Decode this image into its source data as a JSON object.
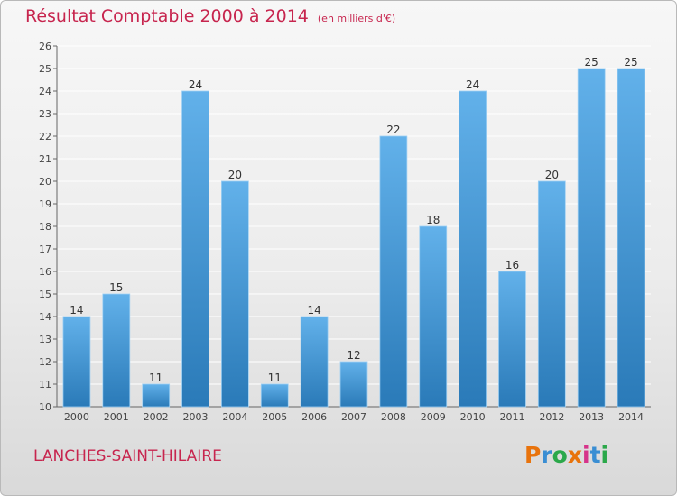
{
  "header": {
    "title": "Résultat Comptable 2000 à 2014",
    "unit": "(en milliers d'€)"
  },
  "footer": {
    "commune": "LANCHES-SAINT-HILAIRE",
    "logo_text": "Proxiti",
    "logo_colors": [
      "#e8730c",
      "#3a8ed3",
      "#2ba84a",
      "#e8730c",
      "#d6338a",
      "#3a8ed3",
      "#2ba84a"
    ]
  },
  "colors": {
    "bar_top": "#62b1ea",
    "bar_bottom": "#2a7ab8",
    "title": "#c7254e",
    "grid": "#ffffff"
  },
  "chart_data": {
    "type": "bar",
    "categories": [
      "2000",
      "2001",
      "2002",
      "2003",
      "2004",
      "2005",
      "2006",
      "2007",
      "2008",
      "2009",
      "2010",
      "2011",
      "2012",
      "2013",
      "2014"
    ],
    "values": [
      14,
      15,
      11,
      24,
      20,
      11,
      14,
      12,
      22,
      18,
      24,
      16,
      20,
      25,
      25
    ],
    "title": "Résultat Comptable 2000 à 2014",
    "subtitle": "(en milliers d'€)",
    "xlabel": "",
    "ylabel": "",
    "ylim": [
      10,
      26
    ],
    "yticks": [
      10,
      11,
      12,
      13,
      14,
      15,
      16,
      17,
      18,
      19,
      20,
      21,
      22,
      23,
      24,
      25,
      26
    ],
    "grid": true,
    "data_labels": true
  }
}
